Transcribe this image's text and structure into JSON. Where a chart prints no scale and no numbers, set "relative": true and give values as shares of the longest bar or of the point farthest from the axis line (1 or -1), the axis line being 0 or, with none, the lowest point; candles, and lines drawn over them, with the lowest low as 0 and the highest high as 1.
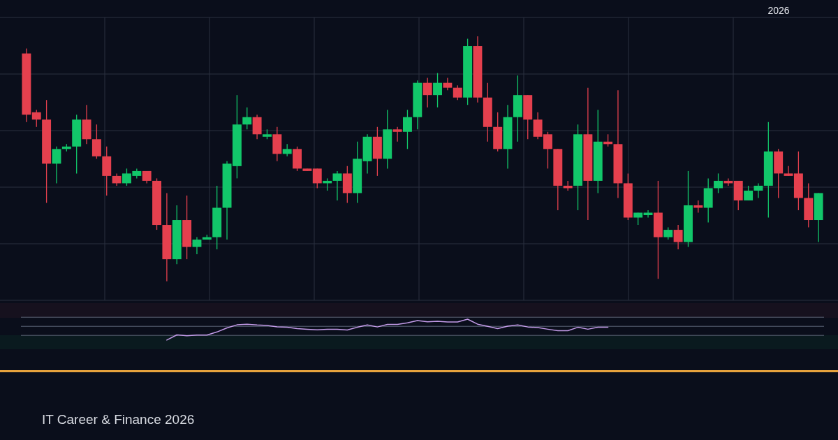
{
  "chart_data": [
    {
      "type": "candlestick",
      "subtitle": "IT Career & Finance 2026",
      "annotations": [
        "2026"
      ],
      "relative": true,
      "grid": true,
      "categories": [
        null,
        null,
        null,
        null,
        null,
        null,
        null,
        null,
        null,
        null,
        null,
        null,
        null,
        null,
        null,
        null,
        null,
        null,
        null,
        null,
        null,
        null,
        null,
        null,
        null,
        null,
        null,
        null,
        null,
        null,
        null,
        null,
        null,
        null,
        null,
        null,
        null,
        null,
        null,
        null,
        null,
        null,
        null,
        null,
        null,
        null,
        null,
        null,
        null,
        null,
        null,
        null,
        null,
        null,
        null,
        null,
        null,
        null,
        null,
        null,
        null,
        null,
        null,
        null,
        null,
        null,
        null,
        null,
        null,
        null,
        null,
        null,
        null,
        null,
        null,
        null,
        null,
        null,
        null,
        null
      ],
      "ohlc": [
        [
          0.93,
          0.95,
          0.65,
          0.68
        ],
        [
          0.69,
          0.7,
          0.63,
          0.66
        ],
        [
          0.66,
          0.74,
          0.32,
          0.48
        ],
        [
          0.48,
          0.55,
          0.4,
          0.54
        ],
        [
          0.54,
          0.56,
          0.53,
          0.55
        ],
        [
          0.55,
          0.68,
          0.44,
          0.66
        ],
        [
          0.66,
          0.72,
          0.56,
          0.58
        ],
        [
          0.58,
          0.64,
          0.5,
          0.51
        ],
        [
          0.51,
          0.55,
          0.35,
          0.43
        ],
        [
          0.43,
          0.44,
          0.39,
          0.4
        ],
        [
          0.4,
          0.46,
          0.39,
          0.44
        ],
        [
          0.43,
          0.46,
          0.42,
          0.45
        ],
        [
          0.45,
          0.45,
          0.4,
          0.41
        ],
        [
          0.41,
          0.42,
          0.21,
          0.23
        ],
        [
          0.23,
          0.36,
          0,
          0.09
        ],
        [
          0.09,
          0.31,
          0.07,
          0.25
        ],
        [
          0.25,
          0.35,
          0.09,
          0.14
        ],
        [
          0.14,
          0.18,
          0.11,
          0.17
        ],
        [
          0.17,
          0.19,
          0.17,
          0.18
        ],
        [
          0.18,
          0.39,
          0.13,
          0.3
        ],
        [
          0.3,
          0.49,
          0.17,
          0.48
        ],
        [
          0.47,
          0.76,
          0.42,
          0.64
        ],
        [
          0.64,
          0.71,
          0.62,
          0.67
        ],
        [
          0.67,
          0.68,
          0.58,
          0.6
        ],
        [
          0.59,
          0.62,
          0.58,
          0.6
        ],
        [
          0.6,
          0.63,
          0.49,
          0.52
        ],
        [
          0.52,
          0.56,
          0.51,
          0.54
        ],
        [
          0.54,
          0.55,
          0.45,
          0.46
        ],
        [
          0.46,
          0.46,
          0.45,
          0.45
        ],
        [
          0.46,
          0.46,
          0.38,
          0.4
        ],
        [
          0.4,
          0.42,
          0.37,
          0.41
        ],
        [
          0.41,
          0.45,
          0.33,
          0.44
        ],
        [
          0.44,
          0.47,
          0.32,
          0.36
        ],
        [
          0.36,
          0.57,
          0.32,
          0.5
        ],
        [
          0.49,
          0.6,
          0.44,
          0.59
        ],
        [
          0.59,
          0.63,
          0.43,
          0.5
        ],
        [
          0.5,
          0.7,
          0.46,
          0.62
        ],
        [
          0.62,
          0.63,
          0.57,
          0.61
        ],
        [
          0.61,
          0.7,
          0.54,
          0.67
        ],
        [
          0.67,
          0.82,
          0.62,
          0.81
        ],
        [
          0.81,
          0.83,
          0.71,
          0.76
        ],
        [
          0.76,
          0.85,
          0.71,
          0.81
        ],
        [
          0.81,
          0.83,
          0.78,
          0.79
        ],
        [
          0.79,
          0.8,
          0.74,
          0.75
        ],
        [
          0.75,
          0.99,
          0.72,
          0.96
        ],
        [
          0.96,
          1,
          0.73,
          0.75
        ],
        [
          0.75,
          0.81,
          0.57,
          0.63
        ],
        [
          0.63,
          0.69,
          0.53,
          0.54
        ],
        [
          0.54,
          0.72,
          0.46,
          0.67
        ],
        [
          0.67,
          0.84,
          0.57,
          0.76
        ],
        [
          0.76,
          0.76,
          0.58,
          0.66
        ],
        [
          0.66,
          0.69,
          0.58,
          0.59
        ],
        [
          0.6,
          0.61,
          0.46,
          0.54
        ],
        [
          0.54,
          0.54,
          0.29,
          0.39
        ],
        [
          0.39,
          0.41,
          0.37,
          0.38
        ],
        [
          0.39,
          0.64,
          0.29,
          0.6
        ],
        [
          0.6,
          0.79,
          0.25,
          0.41
        ],
        [
          0.41,
          0.7,
          0.36,
          0.57
        ],
        [
          0.57,
          0.6,
          0.55,
          0.56
        ],
        [
          0.56,
          0.78,
          0.34,
          0.4
        ],
        [
          0.4,
          0.44,
          0.25,
          0.26
        ],
        [
          0.26,
          0.28,
          0.23,
          0.28
        ],
        [
          0.27,
          0.29,
          0.26,
          0.28
        ],
        [
          0.28,
          0.41,
          0.01,
          0.18
        ],
        [
          0.18,
          0.22,
          0.17,
          0.21
        ],
        [
          0.21,
          0.23,
          0.13,
          0.16
        ],
        [
          0.16,
          0.45,
          0.14,
          0.31
        ],
        [
          0.31,
          0.33,
          0.28,
          0.3
        ],
        [
          0.3,
          0.42,
          0.24,
          0.38
        ],
        [
          0.38,
          0.44,
          0.36,
          0.41
        ],
        [
          0.41,
          0.42,
          0.39,
          0.4
        ],
        [
          0.41,
          0.41,
          0.29,
          0.33
        ],
        [
          0.33,
          0.39,
          0.33,
          0.37
        ],
        [
          0.37,
          0.4,
          0.34,
          0.39
        ],
        [
          0.39,
          0.65,
          0.26,
          0.53
        ],
        [
          0.53,
          0.54,
          0.34,
          0.44
        ],
        [
          0.44,
          0.47,
          0.43,
          0.43
        ],
        [
          0.44,
          0.53,
          0.29,
          0.34
        ],
        [
          0.34,
          0.4,
          0.22,
          0.25
        ],
        [
          0.25,
          0.36,
          0.16,
          0.36
        ]
      ],
      "colors": [
        "#e5404e",
        "#e5404e",
        "#e5404e",
        "#12c76a",
        "#12c76a",
        "#12c76a",
        "#e5404e",
        "#e5404e",
        "#e5404e",
        "#e5404e",
        "#12c76a",
        "#12c76a",
        "#e5404e",
        "#e5404e",
        "#e5404e",
        "#12c76a",
        "#e5404e",
        "#12c76a",
        "#12c76a",
        "#12c76a",
        "#12c76a",
        "#12c76a",
        "#12c76a",
        "#e5404e",
        "#12c76a",
        "#e5404e",
        "#12c76a",
        "#e5404e",
        "#e5404e",
        "#e5404e",
        "#12c76a",
        "#12c76a",
        "#e5404e",
        "#12c76a",
        "#12c76a",
        "#e5404e",
        "#12c76a",
        "#e5404e",
        "#12c76a",
        "#12c76a",
        "#e5404e",
        "#12c76a",
        "#e5404e",
        "#e5404e",
        "#12c76a",
        "#e5404e",
        "#e5404e",
        "#e5404e",
        "#12c76a",
        "#12c76a",
        "#e5404e",
        "#e5404e",
        "#e5404e",
        "#e5404e",
        "#e5404e",
        "#12c76a",
        "#e5404e",
        "#12c76a",
        "#e5404e",
        "#e5404e",
        "#e5404e",
        "#12c76a",
        "#12c76a",
        "#e5404e",
        "#12c76a",
        "#e5404e",
        "#12c76a",
        "#e5404e",
        "#12c76a",
        "#12c76a",
        "#e5404e",
        "#e5404e",
        "#12c76a",
        "#12c76a",
        "#12c76a",
        "#e5404e",
        "#e5404e",
        "#e5404e",
        "#e5404e",
        "#12c76a"
      ]
    },
    {
      "type": "line",
      "relative": true,
      "color": "#c39be8",
      "ref_lines": [
        {
          "axis": "y",
          "value": 1.12,
          "color": "#5a6275"
        },
        {
          "axis": "y",
          "value": 0.56,
          "color": "#5a6275"
        }
      ],
      "categories": [
        null,
        null,
        null,
        null,
        null,
        null,
        null,
        null,
        null,
        null,
        null,
        null,
        null,
        null,
        null,
        null,
        null,
        null,
        null,
        null,
        null,
        null,
        null,
        null,
        null,
        null,
        null,
        null,
        null,
        null,
        null,
        null,
        null,
        null,
        null,
        null,
        null,
        null,
        null,
        null,
        null,
        null,
        null,
        null,
        null,
        null,
        null,
        null,
        null,
        null,
        null,
        null,
        null,
        null,
        null,
        null,
        null,
        null,
        null,
        null,
        null,
        null,
        null,
        null,
        null,
        null,
        null,
        null,
        null,
        null,
        null,
        null,
        null,
        null,
        null,
        null,
        null,
        null,
        null,
        null
      ],
      "values": [
        null,
        null,
        null,
        null,
        null,
        null,
        null,
        null,
        null,
        null,
        null,
        null,
        null,
        null,
        -0.29,
        0.03,
        -0.02,
        0.02,
        0.02,
        0.21,
        0.46,
        0.65,
        0.69,
        0.64,
        0.61,
        0.53,
        0.5,
        0.42,
        0.38,
        0.34,
        0.37,
        0.38,
        0.33,
        0.5,
        0.64,
        0.52,
        0.68,
        0.68,
        0.77,
        0.91,
        0.84,
        0.87,
        0.83,
        0.83,
        1,
        0.69,
        0.56,
        0.42,
        0.57,
        0.64,
        0.52,
        0.48,
        0.38,
        0.29,
        0.29,
        0.5,
        0.38,
        0.5,
        0.5,
        null,
        null,
        null,
        null,
        null,
        null,
        null,
        null,
        null,
        null,
        null,
        null,
        null,
        null,
        null,
        null,
        null,
        null,
        null,
        null,
        null
      ]
    }
  ]
}
